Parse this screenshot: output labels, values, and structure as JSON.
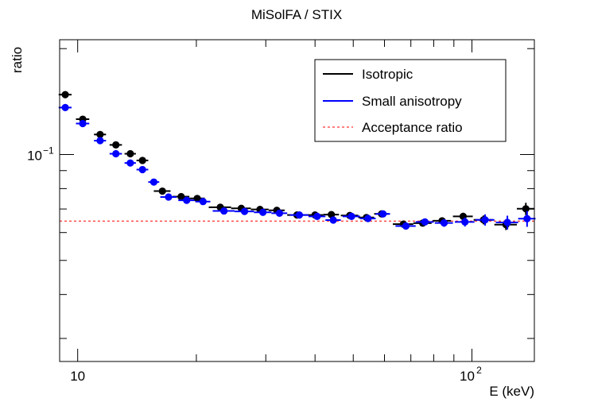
{
  "chart_data": {
    "type": "scatter",
    "title": "MiSolFA / STIX",
    "xlabel": "E (keV)",
    "ylabel": "ratio",
    "x_scale": "log",
    "y_scale": "log",
    "xlim": [
      9.0,
      144
    ],
    "ylim": [
      0.0258,
      0.212
    ],
    "x_ticks": [
      {
        "value": 10,
        "label": "10",
        "exp": ""
      },
      {
        "value": 100,
        "label": "10",
        "exp": "2"
      }
    ],
    "y_ticks": [
      {
        "value": 0.1,
        "label": "10",
        "exp": "−1"
      }
    ],
    "legend_position": "top-right",
    "grid": false,
    "series": [
      {
        "name": "Isotropic",
        "color": "#000000",
        "points": [
          {
            "x": 9.3,
            "y": 0.148,
            "xerr": 0.35,
            "yerr": 0.0015
          },
          {
            "x": 10.3,
            "y": 0.126,
            "xerr": 0.4,
            "yerr": 0.0013
          },
          {
            "x": 11.4,
            "y": 0.114,
            "xerr": 0.4,
            "yerr": 0.0012
          },
          {
            "x": 12.5,
            "y": 0.1065,
            "xerr": 0.45,
            "yerr": 0.0011
          },
          {
            "x": 13.6,
            "y": 0.1005,
            "xerr": 0.45,
            "yerr": 0.001
          },
          {
            "x": 14.6,
            "y": 0.0962,
            "xerr": 0.5,
            "yerr": 0.001
          },
          {
            "x": 16.4,
            "y": 0.0787,
            "xerr": 0.8,
            "yerr": 0.0009
          },
          {
            "x": 18.3,
            "y": 0.0759,
            "xerr": 0.9,
            "yerr": 0.0009
          },
          {
            "x": 20.1,
            "y": 0.075,
            "xerr": 0.9,
            "yerr": 0.0009
          },
          {
            "x": 23.0,
            "y": 0.0708,
            "xerr": 1.5,
            "yerr": 0.0009
          },
          {
            "x": 26.0,
            "y": 0.0703,
            "xerr": 1.5,
            "yerr": 0.0009
          },
          {
            "x": 29.0,
            "y": 0.0698,
            "xerr": 1.5,
            "yerr": 0.0009
          },
          {
            "x": 32.0,
            "y": 0.0694,
            "xerr": 1.5,
            "yerr": 0.0009
          },
          {
            "x": 36.0,
            "y": 0.0673,
            "xerr": 2.0,
            "yerr": 0.0009
          },
          {
            "x": 40.0,
            "y": 0.0673,
            "xerr": 2.0,
            "yerr": 0.001
          },
          {
            "x": 44.0,
            "y": 0.0675,
            "xerr": 2.0,
            "yerr": 0.001
          },
          {
            "x": 49.0,
            "y": 0.0671,
            "xerr": 2.5,
            "yerr": 0.001
          },
          {
            "x": 54.0,
            "y": 0.0662,
            "xerr": 2.5,
            "yerr": 0.001
          },
          {
            "x": 59.0,
            "y": 0.0678,
            "xerr": 2.5,
            "yerr": 0.0011
          },
          {
            "x": 67.0,
            "y": 0.0634,
            "xerr": 4.0,
            "yerr": 0.0012
          },
          {
            "x": 75.0,
            "y": 0.0638,
            "xerr": 4.0,
            "yerr": 0.0013
          },
          {
            "x": 84.0,
            "y": 0.0648,
            "xerr": 4.5,
            "yerr": 0.0014
          },
          {
            "x": 95.0,
            "y": 0.0667,
            "xerr": 5.5,
            "yerr": 0.0016
          },
          {
            "x": 107.0,
            "y": 0.0652,
            "xerr": 6.0,
            "yerr": 0.0019
          },
          {
            "x": 122.0,
            "y": 0.0632,
            "xerr": 8.0,
            "yerr": 0.0022
          },
          {
            "x": 137.0,
            "y": 0.0701,
            "xerr": 7.0,
            "yerr": 0.0028
          }
        ]
      },
      {
        "name": "Small anisotropy",
        "color": "#0000ff",
        "points": [
          {
            "x": 9.3,
            "y": 0.136,
            "xerr": 0.35,
            "yerr": 0.0015
          },
          {
            "x": 10.3,
            "y": 0.1225,
            "xerr": 0.4,
            "yerr": 0.0013
          },
          {
            "x": 11.4,
            "y": 0.1095,
            "xerr": 0.4,
            "yerr": 0.0012
          },
          {
            "x": 12.5,
            "y": 0.1005,
            "xerr": 0.45,
            "yerr": 0.0011
          },
          {
            "x": 13.6,
            "y": 0.0946,
            "xerr": 0.45,
            "yerr": 0.001
          },
          {
            "x": 14.6,
            "y": 0.0906,
            "xerr": 0.5,
            "yerr": 0.001
          },
          {
            "x": 15.6,
            "y": 0.0835,
            "xerr": 0.5,
            "yerr": 0.0009
          },
          {
            "x": 17.0,
            "y": 0.0757,
            "xerr": 0.8,
            "yerr": 0.0009
          },
          {
            "x": 18.9,
            "y": 0.0741,
            "xerr": 0.9,
            "yerr": 0.0009
          },
          {
            "x": 20.8,
            "y": 0.0735,
            "xerr": 0.9,
            "yerr": 0.0009
          },
          {
            "x": 23.5,
            "y": 0.0691,
            "xerr": 1.5,
            "yerr": 0.0009
          },
          {
            "x": 26.5,
            "y": 0.0689,
            "xerr": 1.5,
            "yerr": 0.0009
          },
          {
            "x": 29.5,
            "y": 0.0685,
            "xerr": 1.5,
            "yerr": 0.0009
          },
          {
            "x": 32.5,
            "y": 0.0681,
            "xerr": 1.5,
            "yerr": 0.0009
          },
          {
            "x": 36.5,
            "y": 0.0673,
            "xerr": 2.0,
            "yerr": 0.0009
          },
          {
            "x": 40.5,
            "y": 0.0667,
            "xerr": 2.0,
            "yerr": 0.001
          },
          {
            "x": 44.5,
            "y": 0.0651,
            "xerr": 2.0,
            "yerr": 0.001
          },
          {
            "x": 49.5,
            "y": 0.0667,
            "xerr": 2.5,
            "yerr": 0.001
          },
          {
            "x": 54.5,
            "y": 0.0658,
            "xerr": 2.5,
            "yerr": 0.001
          },
          {
            "x": 59.5,
            "y": 0.0678,
            "xerr": 2.5,
            "yerr": 0.0011
          },
          {
            "x": 68.0,
            "y": 0.0626,
            "xerr": 4.0,
            "yerr": 0.0012
          },
          {
            "x": 76.0,
            "y": 0.0643,
            "xerr": 4.0,
            "yerr": 0.0013
          },
          {
            "x": 85.0,
            "y": 0.0639,
            "xerr": 4.5,
            "yerr": 0.0016
          },
          {
            "x": 96.0,
            "y": 0.0643,
            "xerr": 5.5,
            "yerr": 0.0019
          },
          {
            "x": 108.0,
            "y": 0.0652,
            "xerr": 6.0,
            "yerr": 0.0024
          },
          {
            "x": 123.0,
            "y": 0.0641,
            "xerr": 8.0,
            "yerr": 0.0029
          },
          {
            "x": 138.0,
            "y": 0.0657,
            "xerr": 7.0,
            "yerr": 0.0034
          }
        ]
      }
    ],
    "reference_lines": [
      {
        "name": "Acceptance ratio",
        "y": 0.0647,
        "color": "#ff0000",
        "style": "dashed"
      }
    ]
  }
}
